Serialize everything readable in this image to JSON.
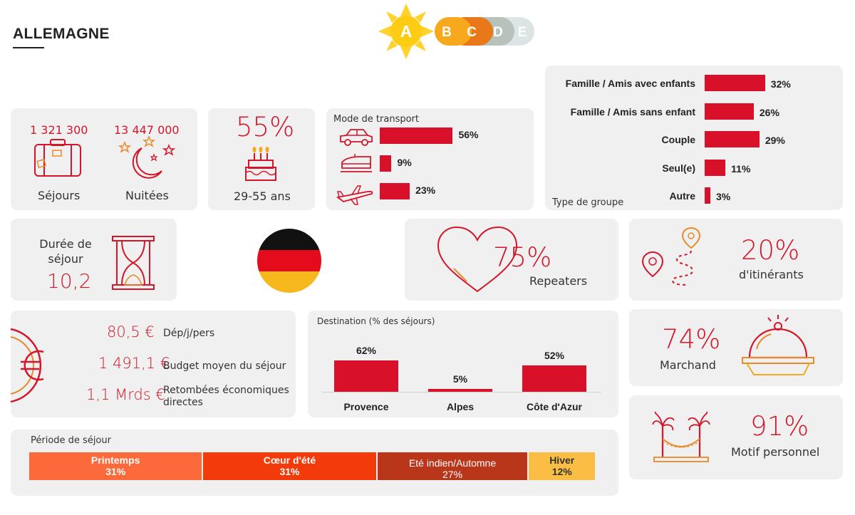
{
  "page": {
    "title": "ALLEMAGNE"
  },
  "rating": {
    "letters": [
      "A",
      "B",
      "C",
      "D",
      "E"
    ],
    "active": "A"
  },
  "stats": {
    "sejours_value": "1 321 300",
    "sejours_label": "Séjours",
    "nuitees_value": "13 447 000",
    "nuitees_label": "Nuitées"
  },
  "age": {
    "value": "55%",
    "label": "29-55 ans"
  },
  "duration": {
    "label": "Durée de séjour",
    "value": "10,2"
  },
  "repeaters": {
    "value": "75%",
    "label": "Repeaters"
  },
  "itinerants": {
    "value": "20%",
    "label": "d'itinérants"
  },
  "budget": {
    "rows": [
      {
        "value": "80,5 €",
        "label": "Dép/j/pers"
      },
      {
        "value": "1 491,1 €",
        "label": "Budget moyen du séjour"
      },
      {
        "value": "1,1 Mrds €",
        "label": "Retombées économiques directes"
      }
    ]
  },
  "marchand": {
    "value": "74%",
    "label": "Marchand"
  },
  "motif": {
    "value": "91%",
    "label": "Motif personnel"
  },
  "colors": {
    "accent": "#d8102a",
    "card": "#f0f0f0"
  },
  "chart_data": [
    {
      "type": "bar",
      "title": "Mode de transport",
      "orientation": "horizontal",
      "categories": [
        "car-icon",
        "train-icon",
        "plane-icon"
      ],
      "values": [
        56,
        9,
        23
      ],
      "labels": [
        "56%",
        "9%",
        "23%"
      ]
    },
    {
      "type": "bar",
      "title": "Type de groupe",
      "orientation": "horizontal",
      "categories": [
        "Famille / Amis avec enfants",
        "Famille / Amis sans enfant",
        "Couple",
        "Seul(e)",
        "Autre"
      ],
      "values": [
        32,
        26,
        29,
        11,
        3
      ],
      "labels": [
        "32%",
        "26%",
        "29%",
        "11%",
        "3%"
      ]
    },
    {
      "type": "bar",
      "title": "Destination  (% des séjours)",
      "categories": [
        "Provence",
        "Alpes",
        "Côte d'Azur"
      ],
      "values": [
        62,
        5,
        52
      ],
      "labels": [
        "62%",
        "5%",
        "52%"
      ]
    },
    {
      "type": "bar",
      "title": "Période de séjour",
      "orientation": "stacked-horizontal",
      "categories": [
        "Printemps",
        "Cœur d'été",
        "Eté indien/Automne",
        "Hiver"
      ],
      "values": [
        31,
        31,
        27,
        12
      ],
      "labels": [
        "31%",
        "31%",
        "27%",
        "12%"
      ],
      "colors": [
        "#fc6a3c",
        "#f23a0a",
        "#b9361b",
        "#fbbe45"
      ]
    }
  ]
}
